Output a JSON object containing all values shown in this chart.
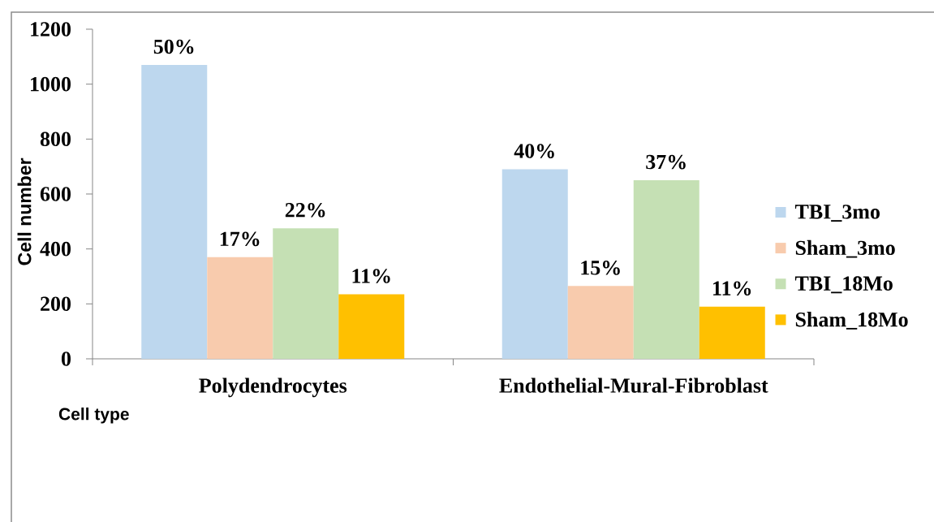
{
  "chart_data": {
    "type": "bar",
    "xlabel": "Cell type",
    "ylabel": "Cell number",
    "categories": [
      "Polydendrocytes",
      "Endothelial-Mural-Fibroblast"
    ],
    "series": [
      {
        "name": "TBI_3mo",
        "color": "#bdd7ee",
        "values": [
          1070,
          690
        ]
      },
      {
        "name": "Sham_3mo",
        "color": "#f8cbad",
        "values": [
          370,
          265
        ]
      },
      {
        "name": "TBI_18Mo",
        "color": "#c5e0b4",
        "values": [
          475,
          650
        ]
      },
      {
        "name": "Sham_18Mo",
        "color": "#ffc000",
        "values": [
          235,
          190
        ]
      }
    ],
    "annotations": [
      "50%",
      "17%",
      "22%",
      "11%",
      "40%",
      "15%",
      "37%",
      "11%"
    ],
    "ylim": [
      0,
      1200
    ],
    "yticks": [
      0,
      200,
      400,
      600,
      800,
      1000,
      1200
    ],
    "legend": "right"
  }
}
